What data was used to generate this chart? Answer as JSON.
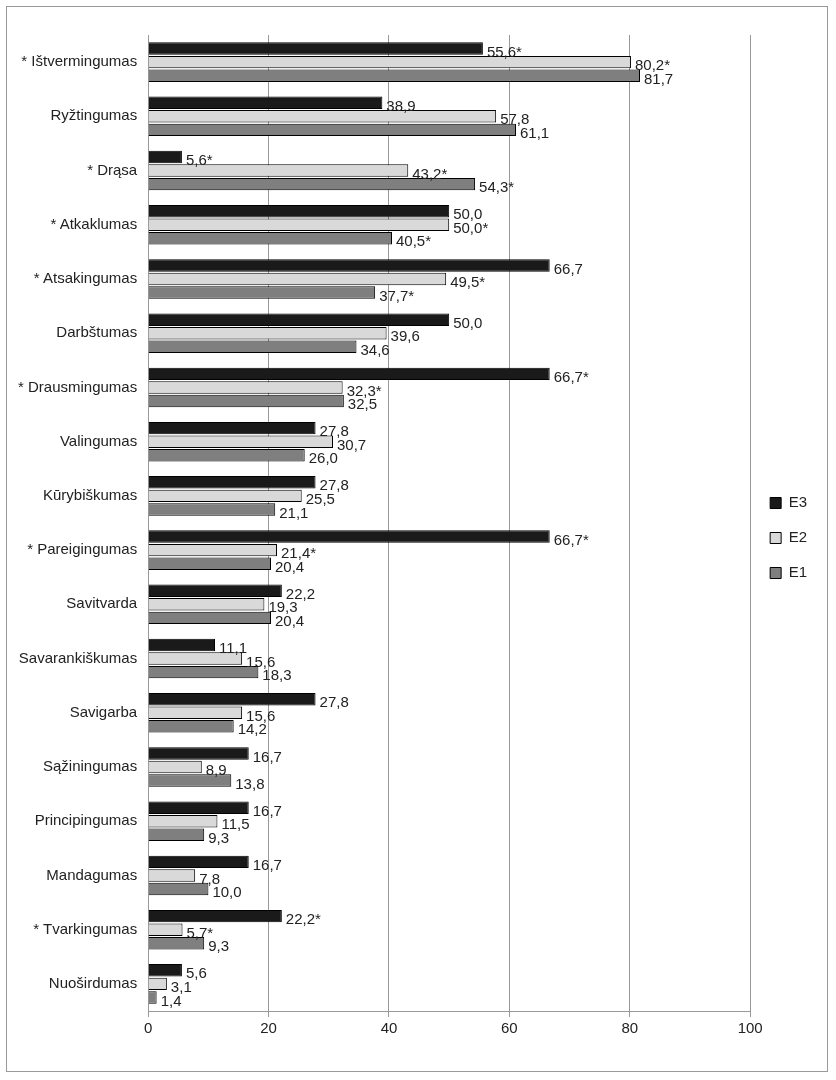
{
  "chart_data": {
    "type": "bar",
    "orientation": "horizontal",
    "categories": [
      "* Ištvermingumas",
      "Ryžtingumas",
      "* Drąsa",
      "* Atkaklumas",
      "* Atsakingumas",
      "Darbštumas",
      "* Drausmingumas",
      "Valingumas",
      "Kūrybiškumas",
      "* Pareigingumas",
      "Savitvarda",
      "Savarankiškumas",
      "Savigarba",
      "Sąžiningumas",
      "Principingumas",
      "Mandagumas",
      "* Tvarkingumas",
      "Nuoširdumas"
    ],
    "series": [
      {
        "name": "E3",
        "color": "#1a1a1a",
        "values": [
          55.6,
          38.9,
          5.6,
          50.0,
          66.7,
          50.0,
          66.7,
          27.8,
          27.8,
          66.7,
          22.2,
          11.1,
          27.8,
          16.7,
          16.7,
          16.7,
          22.2,
          5.6
        ],
        "value_labels": [
          "55,6*",
          "38,9",
          "5,6*",
          "50,0",
          "66,7",
          "50,0",
          "66,7*",
          "27,8",
          "27,8",
          "66,7*",
          "22,2",
          "11,1",
          "27,8",
          "16,7",
          "16,7",
          "16,7",
          "22,2*",
          "5,6"
        ]
      },
      {
        "name": "E2",
        "color": "#d9d9d9",
        "values": [
          80.2,
          57.8,
          43.2,
          50.0,
          49.5,
          39.6,
          32.3,
          30.7,
          25.5,
          21.4,
          19.3,
          15.6,
          15.6,
          8.9,
          11.5,
          7.8,
          5.7,
          3.1
        ],
        "value_labels": [
          "80,2*",
          "57,8",
          "43,2*",
          "50,0*",
          "49,5*",
          "39,6",
          "32,3*",
          "30,7",
          "25,5",
          "21,4*",
          "19,3",
          "15,6",
          "15,6",
          "8,9",
          "11,5",
          "7,8",
          "5,7*",
          "3,1"
        ]
      },
      {
        "name": "E1",
        "color": "#7f7f7f",
        "values": [
          81.7,
          61.1,
          54.3,
          40.5,
          37.7,
          34.6,
          32.5,
          26.0,
          21.1,
          20.4,
          20.4,
          18.3,
          14.2,
          13.8,
          9.3,
          10.0,
          9.3,
          1.4
        ],
        "value_labels": [
          "81,7",
          "61,1",
          "54,3*",
          "40,5*",
          "37,7*",
          "34,6",
          "32,5",
          "26,0",
          "21,1",
          "20,4",
          "20,4",
          "18,3",
          "14,2",
          "13,8",
          "9,3",
          "10,0",
          "9,3",
          "1,4"
        ]
      }
    ],
    "xlim": [
      0,
      100
    ],
    "xticks": [
      0,
      20,
      40,
      60,
      80,
      100
    ],
    "grid": "x",
    "legend": "right"
  }
}
